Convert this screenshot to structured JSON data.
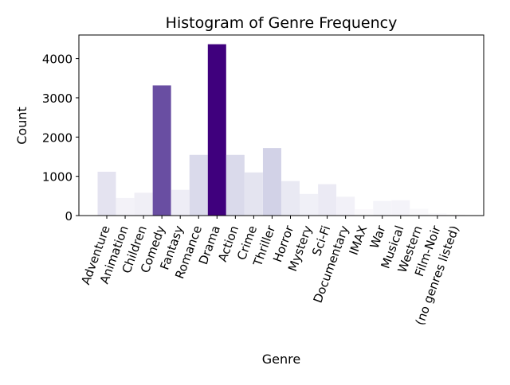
{
  "chart_data": {
    "type": "bar",
    "title": "Histogram of Genre Frequency",
    "xlabel": "Genre",
    "ylabel": "Count",
    "categories": [
      "Adventure",
      "Animation",
      "Children",
      "Comedy",
      "Fantasy",
      "Romance",
      "Drama",
      "Action",
      "Crime",
      "Thriller",
      "Horror",
      "Mystery",
      "Sci-Fi",
      "Documentary",
      "IMAX",
      "War",
      "Musical",
      "Western",
      "Film-Noir",
      "(no genres listed)"
    ],
    "values": [
      1117,
      447,
      583,
      3315,
      654,
      1545,
      4365,
      1545,
      1100,
      1720,
      880,
      550,
      800,
      480,
      160,
      370,
      390,
      170,
      60,
      30
    ],
    "ylim": [
      0,
      4600
    ],
    "yticks": [
      0,
      1000,
      2000,
      3000,
      4000
    ],
    "tick_rotation": 70,
    "colormap": "Purples",
    "colors": {
      "low": "#fcfbfd",
      "mid_low": "#dadaeb",
      "mid": "#bcbddc",
      "mid_high": "#6a51a3",
      "high": "#3f007d"
    },
    "grid": false,
    "legend": "none"
  }
}
